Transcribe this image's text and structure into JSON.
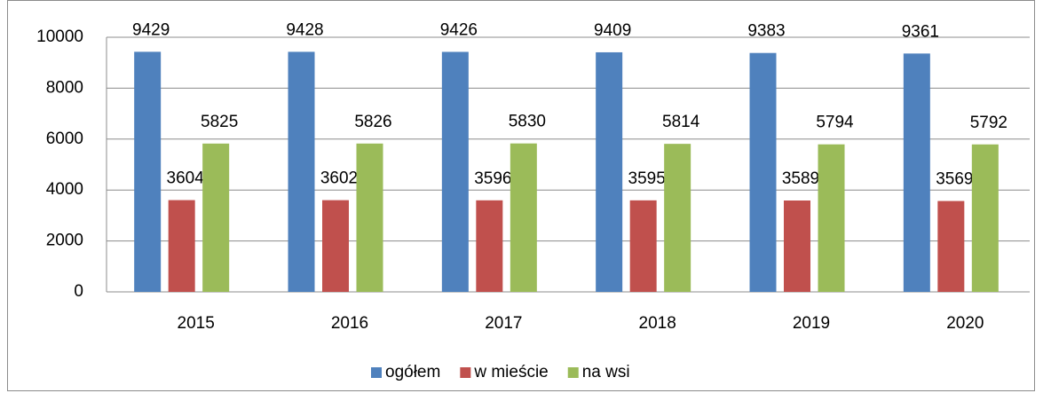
{
  "chart_data": {
    "type": "bar",
    "categories": [
      "2015",
      "2016",
      "2017",
      "2018",
      "2019",
      "2020"
    ],
    "series": [
      {
        "name": "ogółem",
        "color": "#4f81bd",
        "values": [
          9429,
          9428,
          9426,
          9409,
          9383,
          9361
        ]
      },
      {
        "name": "w mieście",
        "color": "#c0504d",
        "values": [
          3604,
          3602,
          3596,
          3595,
          3589,
          3569
        ]
      },
      {
        "name": "na wsi",
        "color": "#9bbb59",
        "values": [
          5825,
          5826,
          5830,
          5814,
          5794,
          5792
        ]
      }
    ],
    "ylim": [
      0,
      10000
    ],
    "yticks": [
      0,
      2000,
      4000,
      6000,
      8000,
      10000
    ],
    "grid": true,
    "legend": "bottom"
  }
}
